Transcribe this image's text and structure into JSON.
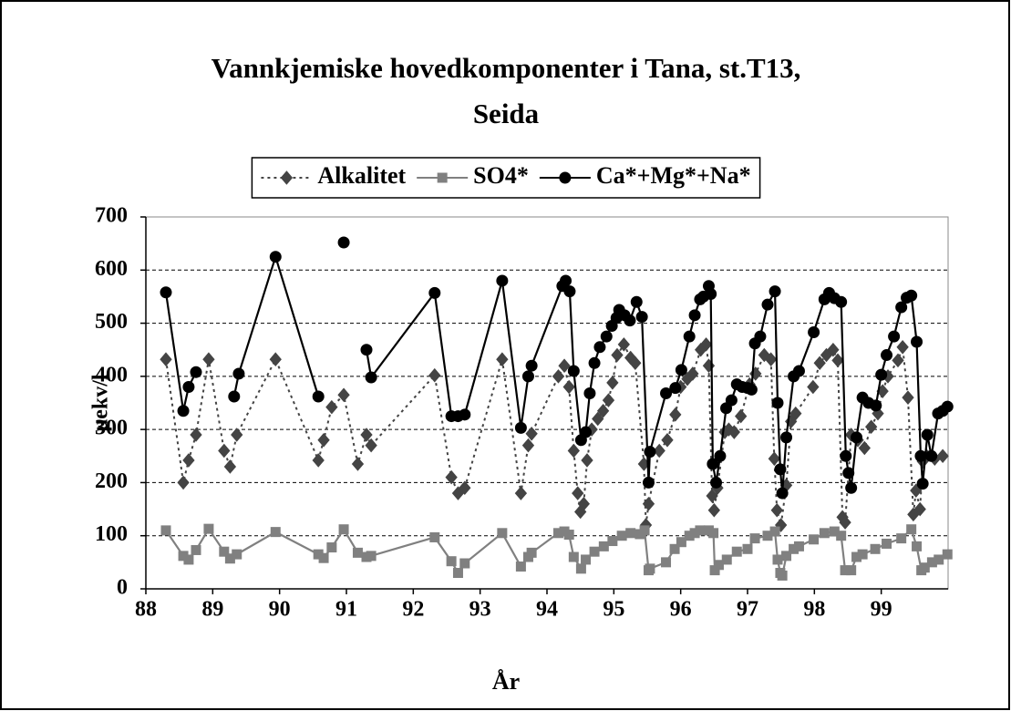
{
  "chart_data": {
    "type": "line",
    "title": [
      "Vannkjemiske hovedkomponenter i Tana, st.T13,",
      "Seida"
    ],
    "x_label": "År",
    "y_label": "µekv/l",
    "xlim": [
      88,
      100
    ],
    "xticks": [
      88,
      89,
      90,
      91,
      92,
      93,
      94,
      95,
      96,
      97,
      98,
      99
    ],
    "ylim": [
      0,
      700
    ],
    "yticks": [
      0,
      100,
      200,
      300,
      400,
      500,
      600,
      700
    ],
    "grid": true,
    "legend": "top",
    "series": [
      {
        "name": "Alkalitet",
        "color": "#444444",
        "marker": "diamond",
        "line_style": "dotted",
        "x": [
          88.3,
          88.56,
          88.64,
          88.75,
          88.94,
          89.17,
          89.26,
          89.36,
          89.94,
          90.58,
          90.66,
          90.78,
          90.96,
          91.17,
          91.3,
          91.37,
          92.32,
          92.57,
          92.67,
          92.77,
          93.33,
          93.61,
          93.72,
          93.77,
          94.17,
          94.26,
          94.33,
          94.4,
          94.46,
          94.5,
          94.55,
          94.6,
          94.67,
          94.76,
          94.84,
          94.92,
          94.98,
          95.05,
          95.15,
          95.25,
          95.32,
          95.45,
          95.48,
          95.52,
          95.68,
          95.8,
          95.92,
          96.0,
          96.1,
          96.18,
          96.3,
          96.38,
          96.42,
          96.47,
          96.5,
          96.55,
          96.66,
          96.72,
          96.8,
          96.9,
          97.03,
          97.12,
          97.25,
          97.35,
          97.4,
          97.44,
          97.5,
          97.58,
          97.65,
          97.72,
          97.98,
          98.08,
          98.18,
          98.28,
          98.35,
          98.42,
          98.46,
          98.55,
          98.65,
          98.75,
          98.85,
          98.95,
          99.02,
          99.1,
          99.25,
          99.32,
          99.4,
          99.48,
          99.52,
          99.58,
          99.62,
          99.68,
          99.8,
          99.92
        ],
        "values": [
          432,
          200,
          242,
          290,
          432,
          260,
          230,
          290,
          432,
          242,
          280,
          342,
          365,
          235,
          290,
          270,
          402,
          210,
          180,
          190,
          432,
          180,
          270,
          292,
          400,
          420,
          380,
          260,
          180,
          145,
          160,
          242,
          300,
          320,
          335,
          355,
          388,
          440,
          460,
          435,
          425,
          235,
          120,
          160,
          260,
          280,
          328,
          380,
          395,
          405,
          450,
          460,
          420,
          175,
          148,
          190,
          295,
          300,
          295,
          325,
          385,
          405,
          440,
          432,
          245,
          148,
          120,
          195,
          315,
          330,
          380,
          425,
          440,
          450,
          430,
          135,
          125,
          290,
          280,
          265,
          305,
          330,
          372,
          400,
          430,
          455,
          360,
          140,
          185,
          150,
          240,
          250,
          245,
          250
        ]
      },
      {
        "name": "SO4*",
        "color": "#808080",
        "marker": "square",
        "line_style": "solid",
        "x": [
          88.3,
          88.56,
          88.64,
          88.75,
          88.94,
          89.17,
          89.26,
          89.36,
          89.94,
          90.58,
          90.66,
          90.78,
          90.96,
          91.17,
          91.3,
          91.37,
          92.32,
          92.57,
          92.67,
          92.77,
          93.33,
          93.61,
          93.72,
          93.77,
          94.17,
          94.26,
          94.33,
          94.4,
          94.51,
          94.58,
          94.71,
          94.85,
          94.98,
          95.12,
          95.25,
          95.39,
          95.46,
          95.52,
          95.54,
          95.78,
          95.91,
          96.01,
          96.13,
          96.21,
          96.29,
          96.42,
          96.49,
          96.51,
          96.57,
          96.69,
          96.84,
          97.0,
          97.11,
          97.3,
          97.41,
          97.45,
          97.49,
          97.52,
          97.58,
          97.69,
          97.77,
          97.99,
          98.15,
          98.3,
          98.4,
          98.46,
          98.55,
          98.63,
          98.72,
          98.91,
          99.08,
          99.3,
          99.45,
          99.53,
          99.6,
          99.65,
          99.76,
          99.86,
          99.99
        ],
        "values": [
          110,
          62,
          55,
          73,
          113,
          70,
          57,
          65,
          107,
          65,
          58,
          78,
          112,
          68,
          60,
          62,
          97,
          52,
          30,
          48,
          105,
          42,
          60,
          68,
          105,
          108,
          102,
          60,
          38,
          55,
          70,
          80,
          90,
          100,
          105,
          103,
          110,
          35,
          38,
          50,
          75,
          88,
          100,
          105,
          110,
          110,
          105,
          35,
          45,
          55,
          70,
          75,
          95,
          100,
          108,
          55,
          30,
          25,
          62,
          75,
          80,
          93,
          105,
          108,
          100,
          35,
          35,
          60,
          65,
          75,
          85,
          95,
          112,
          80,
          35,
          40,
          50,
          55,
          65
        ]
      },
      {
        "name": "Ca*+Mg*+Na*",
        "color": "#000000",
        "marker": "circle",
        "line_style": "solid",
        "x": [
          88.3,
          88.56,
          88.64,
          88.75,
          null,
          89.32,
          89.39,
          89.94,
          90.58,
          null,
          90.96,
          null,
          91.3,
          91.37,
          92.32,
          92.57,
          92.67,
          92.77,
          93.33,
          93.61,
          93.72,
          93.77,
          94.23,
          94.28,
          94.34,
          94.4,
          94.51,
          94.58,
          94.64,
          94.71,
          94.79,
          94.89,
          94.97,
          95.04,
          95.08,
          95.16,
          95.24,
          95.34,
          95.42,
          95.52,
          95.54,
          95.78,
          95.92,
          96.01,
          96.13,
          96.21,
          96.29,
          96.34,
          96.42,
          96.45,
          96.48,
          96.53,
          96.59,
          96.68,
          96.76,
          96.84,
          96.92,
          97.0,
          97.06,
          97.11,
          97.19,
          97.3,
          97.41,
          97.45,
          97.49,
          97.52,
          97.58,
          97.69,
          97.77,
          97.99,
          98.15,
          98.22,
          98.3,
          98.4,
          98.47,
          98.51,
          98.55,
          98.63,
          98.72,
          98.81,
          98.92,
          99.0,
          99.08,
          99.19,
          99.3,
          99.38,
          99.45,
          99.53,
          99.59,
          99.62,
          99.69,
          99.75,
          99.85,
          99.92,
          99.99
        ],
        "values": [
          558,
          335,
          380,
          408,
          null,
          362,
          405,
          625,
          362,
          null,
          652,
          null,
          450,
          398,
          557,
          325,
          325,
          328,
          580,
          303,
          400,
          420,
          570,
          580,
          560,
          410,
          280,
          295,
          368,
          425,
          455,
          475,
          495,
          510,
          525,
          515,
          505,
          540,
          512,
          200,
          258,
          368,
          378,
          412,
          475,
          515,
          545,
          550,
          570,
          555,
          235,
          200,
          250,
          340,
          355,
          385,
          380,
          378,
          375,
          462,
          475,
          535,
          560,
          350,
          225,
          180,
          285,
          400,
          410,
          483,
          545,
          557,
          547,
          540,
          250,
          218,
          190,
          285,
          360,
          350,
          345,
          403,
          440,
          475,
          530,
          548,
          552,
          465,
          250,
          198,
          290,
          250,
          330,
          335,
          343
        ]
      }
    ]
  }
}
